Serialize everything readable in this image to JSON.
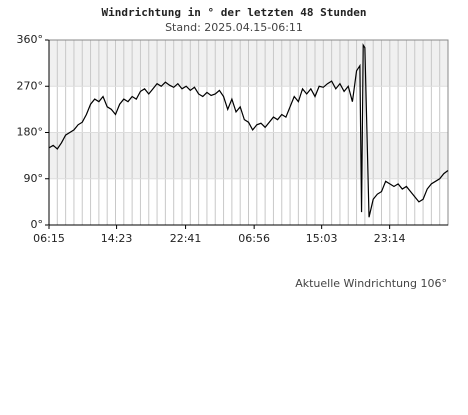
{
  "chart_data": {
    "type": "line",
    "title": "Windrichtung in ° der letzten 48 Stunden",
    "subtitle": "Stand: 2025.04.15-06:11",
    "annotation": "Aktuelle Windrichtung 106°",
    "color": "#000000",
    "xlim": [
      0,
      48
    ],
    "ylim": [
      0,
      360
    ],
    "yticks": [
      {
        "value": 0,
        "label": "0°"
      },
      {
        "value": 90,
        "label": "90°"
      },
      {
        "value": 180,
        "label": "180°"
      },
      {
        "value": 270,
        "label": "270°"
      },
      {
        "value": 360,
        "label": "360°"
      }
    ],
    "xticks": [
      {
        "value": 0,
        "label": "06:15"
      },
      {
        "value": 8.13,
        "label": "14:23"
      },
      {
        "value": 16.43,
        "label": "22:41"
      },
      {
        "value": 24.68,
        "label": "06:56"
      },
      {
        "value": 32.8,
        "label": "15:03"
      },
      {
        "value": 40.98,
        "label": "23:14"
      }
    ],
    "x": [
      0,
      0.5,
      1,
      1.5,
      2,
      2.5,
      3,
      3.5,
      4,
      4.5,
      5,
      5.5,
      6,
      6.5,
      7,
      7.5,
      8,
      8.5,
      9,
      9.5,
      10,
      10.5,
      11,
      11.5,
      12,
      12.5,
      13,
      13.5,
      14,
      14.5,
      15,
      15.5,
      16,
      16.5,
      17,
      17.5,
      18,
      18.5,
      19,
      19.5,
      20,
      20.5,
      21,
      21.5,
      22,
      22.5,
      23,
      23.5,
      24,
      24.5,
      25,
      25.5,
      26,
      26.5,
      27,
      27.5,
      28,
      28.5,
      29,
      29.5,
      30,
      30.5,
      31,
      31.5,
      32,
      32.5,
      33,
      33.5,
      34,
      34.5,
      35,
      35.5,
      36,
      36.5,
      37,
      37.4,
      37.6,
      37.8,
      38,
      38.5,
      39,
      39.5,
      40,
      40.5,
      41,
      41.5,
      42,
      42.5,
      43,
      43.5,
      44,
      44.5,
      45,
      45.5,
      46,
      46.5,
      47,
      47.5,
      48
    ],
    "values": [
      150,
      155,
      148,
      160,
      175,
      180,
      185,
      195,
      200,
      215,
      235,
      245,
      240,
      250,
      230,
      225,
      215,
      235,
      245,
      240,
      250,
      245,
      260,
      265,
      255,
      265,
      275,
      270,
      278,
      272,
      268,
      275,
      265,
      270,
      262,
      268,
      255,
      250,
      258,
      252,
      255,
      262,
      250,
      225,
      245,
      220,
      230,
      205,
      200,
      185,
      195,
      198,
      190,
      200,
      210,
      205,
      215,
      210,
      230,
      250,
      240,
      265,
      255,
      265,
      250,
      270,
      268,
      275,
      280,
      265,
      275,
      260,
      270,
      240,
      300,
      310,
      25,
      350,
      345,
      15,
      50,
      60,
      65,
      85,
      80,
      75,
      80,
      70,
      75,
      65,
      55,
      45,
      50,
      70,
      80,
      85,
      90,
      100,
      106
    ]
  }
}
